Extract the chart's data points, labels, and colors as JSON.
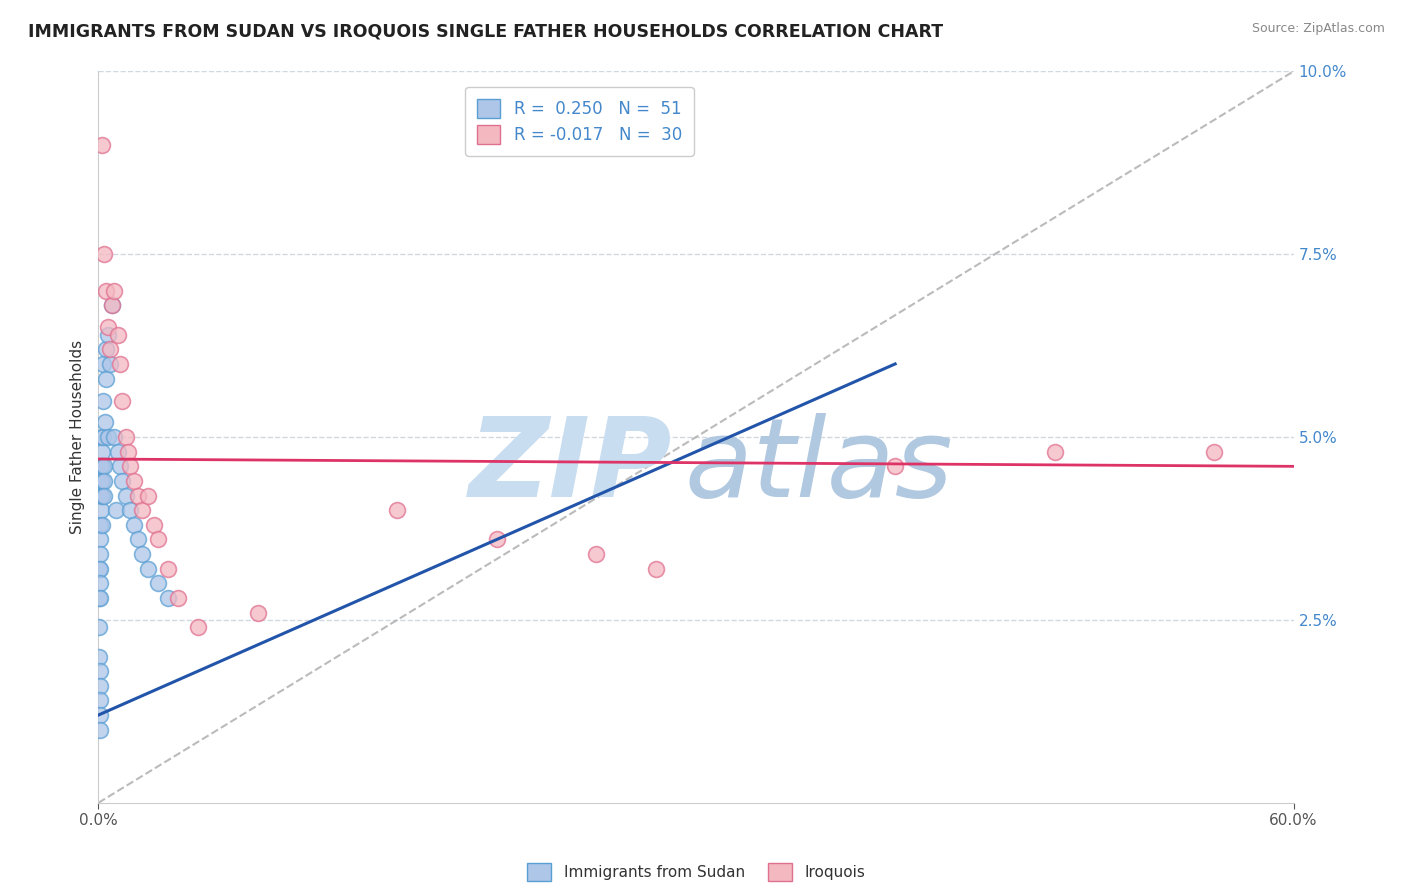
{
  "title": "IMMIGRANTS FROM SUDAN VS IROQUOIS SINGLE FATHER HOUSEHOLDS CORRELATION CHART",
  "source": "Source: ZipAtlas.com",
  "ylabel": "Single Father Households",
  "xlim": [
    0.0,
    0.6
  ],
  "ylim": [
    0.0,
    0.1
  ],
  "xtick_vals": [
    0.0,
    0.6
  ],
  "ytick_vals": [
    0.025,
    0.05,
    0.075,
    0.1
  ],
  "grid_color": "#d0d8e0",
  "background_color": "#ffffff",
  "sudan_color": "#aec6e8",
  "iroquois_color": "#f4b8c1",
  "sudan_edge_color": "#5a9fd4",
  "iroquois_edge_color": "#e07090",
  "sudan_line_color": "#2255aa",
  "iroquois_line_color": "#dd3366",
  "diag_line_color": "#aaaaaa",
  "sudan_R": 0.25,
  "sudan_N": 51,
  "iroquois_R": -0.017,
  "iroquois_N": 30,
  "axis_label_color": "#4488cc",
  "title_color": "#222222",
  "watermark_zip_color": "#c8ddf0",
  "watermark_atlas_color": "#b0c8e0",
  "sudan_x": [
    0.0003,
    0.0004,
    0.0005,
    0.0005,
    0.0006,
    0.0007,
    0.0007,
    0.0008,
    0.0009,
    0.001,
    0.001,
    0.001,
    0.001,
    0.001,
    0.001,
    0.0012,
    0.0013,
    0.0015,
    0.0015,
    0.0016,
    0.0018,
    0.002,
    0.002,
    0.002,
    0.002,
    0.0022,
    0.0024,
    0.0025,
    0.003,
    0.003,
    0.003,
    0.0035,
    0.004,
    0.004,
    0.005,
    0.005,
    0.006,
    0.007,
    0.008,
    0.009,
    0.01,
    0.011,
    0.012,
    0.014,
    0.016,
    0.018,
    0.02,
    0.022,
    0.025,
    0.03,
    0.035
  ],
  "sudan_y": [
    0.032,
    0.028,
    0.024,
    0.02,
    0.018,
    0.016,
    0.014,
    0.012,
    0.01,
    0.038,
    0.036,
    0.034,
    0.032,
    0.03,
    0.028,
    0.046,
    0.044,
    0.042,
    0.04,
    0.038,
    0.05,
    0.048,
    0.046,
    0.044,
    0.042,
    0.05,
    0.055,
    0.06,
    0.046,
    0.044,
    0.042,
    0.052,
    0.058,
    0.062,
    0.05,
    0.064,
    0.06,
    0.068,
    0.05,
    0.04,
    0.048,
    0.046,
    0.044,
    0.042,
    0.04,
    0.038,
    0.036,
    0.034,
    0.032,
    0.03,
    0.028
  ],
  "iroquois_x": [
    0.002,
    0.003,
    0.004,
    0.005,
    0.006,
    0.007,
    0.008,
    0.01,
    0.011,
    0.012,
    0.014,
    0.015,
    0.016,
    0.018,
    0.02,
    0.022,
    0.025,
    0.028,
    0.03,
    0.035,
    0.04,
    0.05,
    0.08,
    0.15,
    0.2,
    0.25,
    0.28,
    0.4,
    0.48,
    0.56
  ],
  "iroquois_y": [
    0.09,
    0.075,
    0.07,
    0.065,
    0.062,
    0.068,
    0.07,
    0.064,
    0.06,
    0.055,
    0.05,
    0.048,
    0.046,
    0.044,
    0.042,
    0.04,
    0.042,
    0.038,
    0.036,
    0.032,
    0.028,
    0.024,
    0.026,
    0.04,
    0.036,
    0.034,
    0.032,
    0.046,
    0.048,
    0.048
  ],
  "sudan_line_x0": 0.0,
  "sudan_line_y0": 0.012,
  "sudan_line_x1": 0.4,
  "sudan_line_y1": 0.06,
  "iroquois_line_x0": 0.0,
  "iroquois_line_y0": 0.047,
  "iroquois_line_x1": 0.6,
  "iroquois_line_y1": 0.046
}
